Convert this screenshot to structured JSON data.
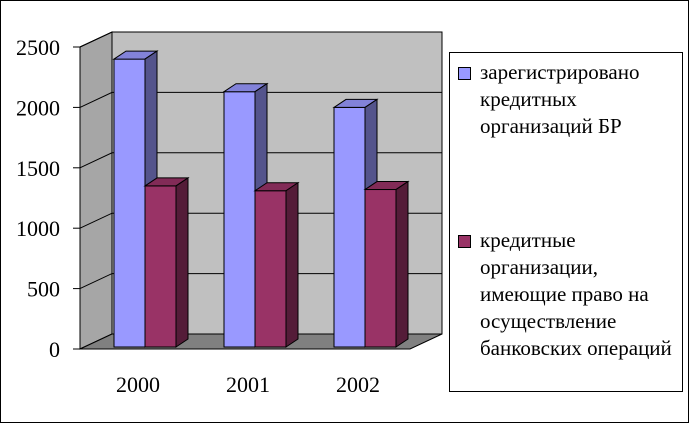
{
  "chart_data": {
    "type": "bar",
    "categories": [
      "2000",
      "2001",
      "2002"
    ],
    "series": [
      {
        "name": "зарегистрировано кредитных организаций БР",
        "values": [
          2400,
          2130,
          2000
        ],
        "color": "#9999ff"
      },
      {
        "name": "кредитные организации, имеющие право на осуществление банковских операций",
        "values": [
          1350,
          1310,
          1320
        ],
        "color": "#993366"
      }
    ],
    "y_ticks": [
      "0",
      "500",
      "1000",
      "1500",
      "2000",
      "2500"
    ],
    "ylim": [
      0,
      2500
    ],
    "grid": true,
    "legend_position": "right",
    "three_d": true,
    "colors": {
      "wall": "#c0c0c0",
      "floor": "#808080"
    }
  }
}
